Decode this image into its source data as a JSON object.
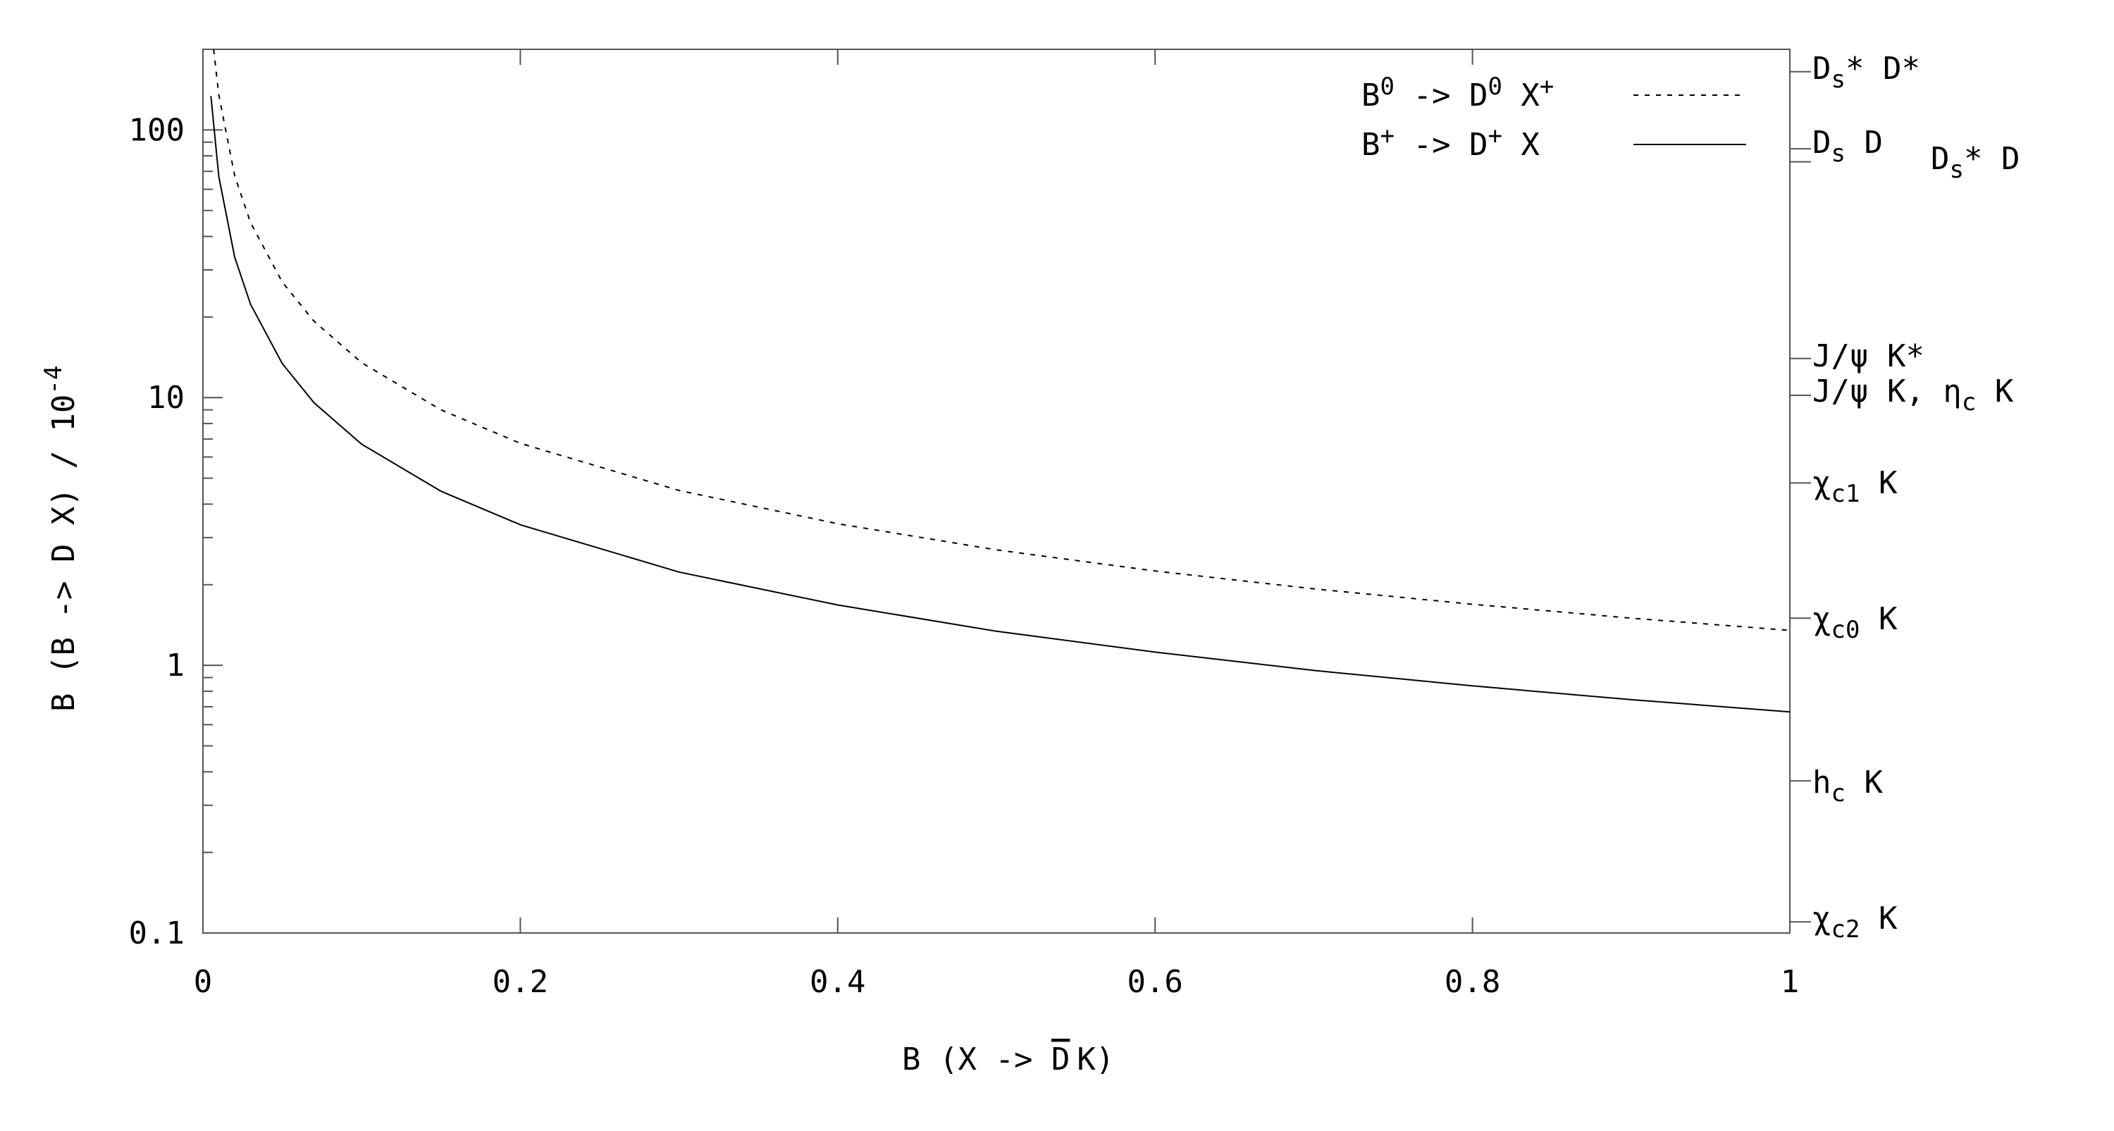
{
  "chart_data": {
    "type": "line",
    "y_scale": "log",
    "xlim": [
      0,
      1
    ],
    "ylim": [
      0.1,
      200
    ],
    "xlabel": {
      "base": "B (X -> ",
      "bar": "D",
      "tail": "K)"
    },
    "ylabel": {
      "base": "B (B -> D X) / 10",
      "exp": "-4"
    },
    "x_ticks": [
      "0",
      "0.2",
      "0.4",
      "0.6",
      "0.8",
      "1"
    ],
    "x_tick_values": [
      0,
      0.2,
      0.4,
      0.6,
      0.8,
      1
    ],
    "y_ticks": [
      "100",
      "10",
      "1",
      "0.1"
    ],
    "y_tick_values": [
      100,
      10,
      1,
      0.1
    ],
    "series": [
      {
        "name": "B⁰ -> D⁰ X⁺",
        "legend": {
          "a": "B",
          "a_sup": "0",
          "b": " -> D",
          "b_sup": "0",
          "c": " X",
          "c_sup": "+"
        },
        "style": "dashed",
        "x": [
          0.005,
          0.01,
          0.02,
          0.03,
          0.05,
          0.07,
          0.1,
          0.15,
          0.2,
          0.3,
          0.4,
          0.5,
          0.6,
          0.7,
          0.8,
          0.9,
          1.0
        ],
        "y": [
          270,
          135,
          67.5,
          45,
          27,
          19.3,
          13.5,
          9,
          6.75,
          4.5,
          3.38,
          2.7,
          2.25,
          1.93,
          1.69,
          1.5,
          1.35
        ]
      },
      {
        "name": "B⁺ -> D⁺ X",
        "legend": {
          "a": "B",
          "a_sup": "+",
          "b": " -> D",
          "b_sup": "+",
          "c": " X",
          "c_sup": ""
        },
        "style": "solid",
        "x": [
          0.005,
          0.01,
          0.02,
          0.03,
          0.05,
          0.07,
          0.1,
          0.15,
          0.2,
          0.3,
          0.4,
          0.5,
          0.6,
          0.7,
          0.8,
          0.9,
          1.0
        ],
        "y": [
          134,
          67,
          33.5,
          22.3,
          13.4,
          9.57,
          6.7,
          4.47,
          3.35,
          2.23,
          1.68,
          1.34,
          1.12,
          0.957,
          0.838,
          0.744,
          0.67
        ]
      }
    ],
    "right_axis_markers": [
      {
        "label": "Ds* D*",
        "value": 165
      },
      {
        "label": "Ds D",
        "value": 85
      },
      {
        "label": "Ds* D",
        "value": 76
      },
      {
        "label": "J/ψ K*",
        "value": 14
      },
      {
        "label": "J/ψ K, ηc K",
        "value": 10.2
      },
      {
        "label": "χc1 K",
        "value": 4.8
      },
      {
        "label": "χc0 K",
        "value": 1.5
      },
      {
        "label": "hc K",
        "value": 0.37
      },
      {
        "label": "χc2 K",
        "value": 0.11
      }
    ],
    "right_labels": {
      "dsstar_dstar": {
        "D": "D",
        "s": "s",
        "tail": "* D*"
      },
      "ds_d": {
        "D": "D",
        "s": "s",
        "tail": " D"
      },
      "dsstar_d": {
        "D": "D",
        "s": "s",
        "tail": "* D"
      },
      "jpsi_kstar": {
        "text": "J/ψ K*"
      },
      "jpsi_k_etac": {
        "head": "J/ψ K, η",
        "sub": "c",
        "tail": " K"
      },
      "chic1": {
        "head": "χ",
        "sub": "c1",
        "tail": " K"
      },
      "chic0": {
        "head": "χ",
        "sub": "c0",
        "tail": " K"
      },
      "hc": {
        "head": "h",
        "sub": "c",
        "tail": " K"
      },
      "chic2": {
        "head": "χ",
        "sub": "c2",
        "tail": " K"
      }
    },
    "grid": false,
    "legend_position": "top-right"
  }
}
